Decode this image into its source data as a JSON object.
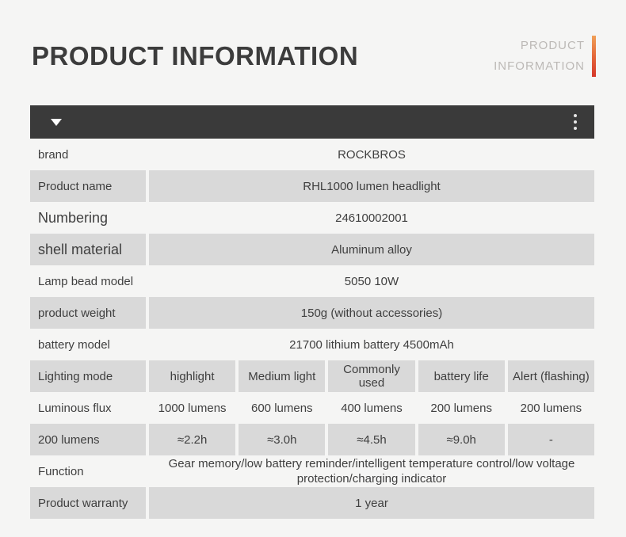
{
  "page": {
    "title": "PRODUCT INFORMATION",
    "watermark_line1": "PRODUCT",
    "watermark_line2": "INFORMATION"
  },
  "colors": {
    "page_bg": "#f5f5f4",
    "toolbar_bg": "#3a3a3a",
    "cell_bg": "#d9d9d9",
    "text": "#3f3f3f",
    "accent_gradient_top": "#f0a058",
    "accent_gradient_bottom": "#d5382a",
    "watermark_text": "#bcb9b6"
  },
  "toolbar": {
    "collapse_icon": "triangle-down-icon",
    "menu_icon": "vertical-ellipsis-icon"
  },
  "table": {
    "rows": [
      {
        "label": "brand",
        "value": "ROCKBROS"
      },
      {
        "label": "Product name",
        "value": "RHL1000 lumen headlight"
      },
      {
        "label": "Numbering",
        "value": "24610002001"
      },
      {
        "label": "shell material",
        "value": "Aluminum alloy"
      },
      {
        "label": "Lamp bead model",
        "value": "5050 10W"
      },
      {
        "label": "product weight",
        "value": "150g (without accessories)"
      },
      {
        "label": "battery model",
        "value": "21700 lithium battery 4500mAh"
      },
      {
        "label": "Lighting mode",
        "values": [
          "highlight",
          "Medium light",
          "Commonly used",
          "battery life",
          "Alert (flashing)"
        ]
      },
      {
        "label": "Luminous flux",
        "values": [
          "1000 lumens",
          "600 lumens",
          "400 lumens",
          "200 lumens",
          "200 lumens"
        ]
      },
      {
        "label": "200 lumens",
        "values": [
          "≈2.2h",
          "≈3.0h",
          "≈4.5h",
          "≈9.0h",
          "-"
        ]
      },
      {
        "label": "Function",
        "value": "Gear memory/low battery reminder/intelligent temperature control/low voltage protection/charging indicator"
      },
      {
        "label": "Product warranty",
        "value": "1 year"
      }
    ]
  }
}
